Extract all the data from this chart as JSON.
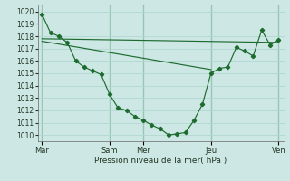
{
  "background_color": "#cde8e4",
  "grid_color": "#b0d8d0",
  "line_color": "#1e6b30",
  "ylabel": "Pression niveau de la mer( hPa )",
  "ylim": [
    1009.5,
    1020.5
  ],
  "yticks": [
    1010,
    1011,
    1012,
    1013,
    1014,
    1015,
    1016,
    1017,
    1018,
    1019,
    1020
  ],
  "day_labels": [
    "Mar",
    "Sam",
    "Mer",
    "Jeu",
    "Ven"
  ],
  "day_positions": [
    0,
    48,
    72,
    120,
    168
  ],
  "xlim": [
    -3,
    172
  ],
  "series1_x": [
    0,
    6,
    12,
    18,
    24,
    30,
    36,
    42,
    48,
    54,
    60,
    66,
    72,
    78,
    84,
    90,
    96,
    102,
    108,
    114,
    120,
    126,
    132,
    138,
    144,
    150,
    156,
    162,
    168
  ],
  "series1_y": [
    1019.8,
    1018.3,
    1018.0,
    1017.5,
    1016.0,
    1015.5,
    1015.2,
    1014.9,
    1013.3,
    1012.2,
    1012.0,
    1011.5,
    1011.2,
    1010.8,
    1010.5,
    1010.0,
    1010.1,
    1010.2,
    1011.2,
    1012.5,
    1015.0,
    1015.4,
    1015.5,
    1017.1,
    1016.8,
    1016.4,
    1018.5,
    1017.3,
    1017.7
  ],
  "series2_x": [
    0,
    168
  ],
  "series2_y": [
    1017.8,
    1017.5
  ],
  "series3_x": [
    0,
    120
  ],
  "series3_y": [
    1017.6,
    1015.3
  ]
}
